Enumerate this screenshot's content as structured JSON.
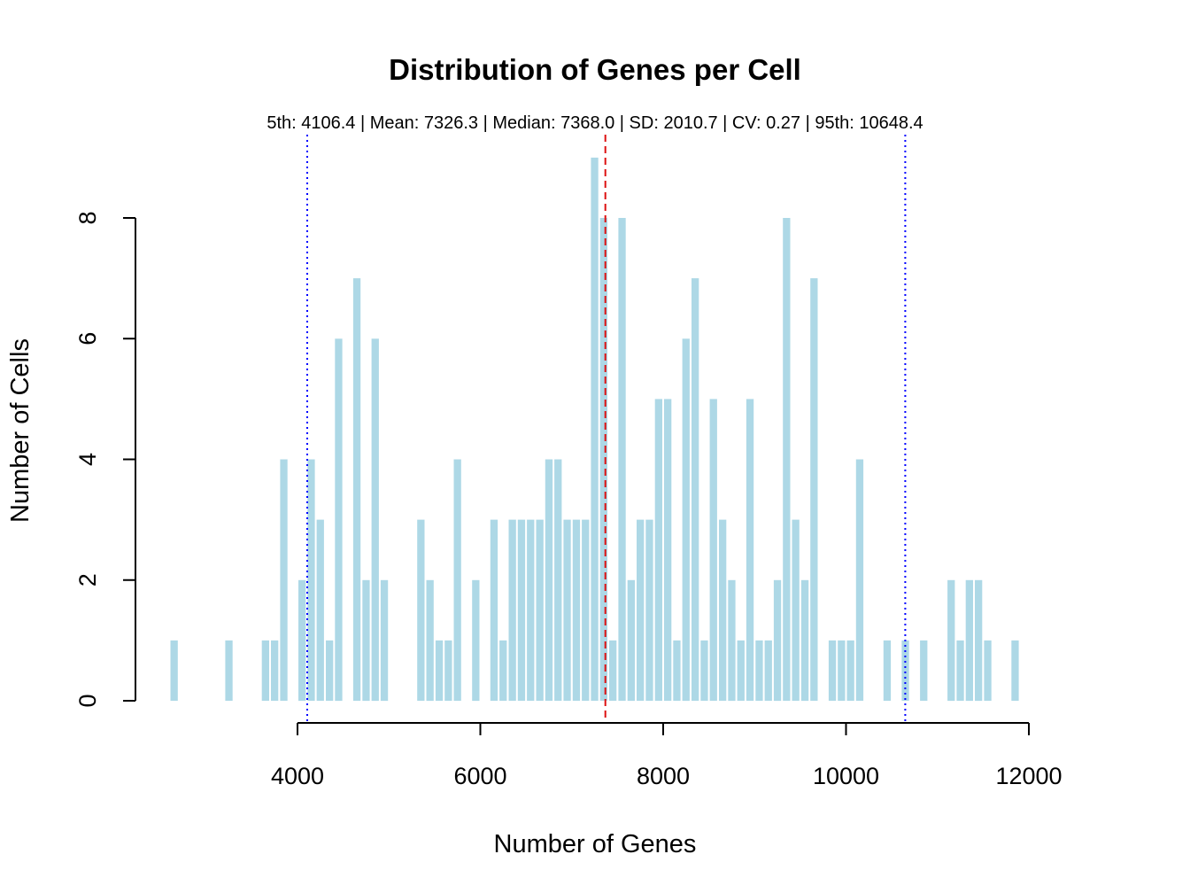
{
  "chart_data": {
    "type": "bar",
    "title": "Distribution of Genes per Cell",
    "subtitle": "5th: 4106.4 | Mean: 7326.3 | Median: 7368.0 | SD: 2010.7 | CV: 0.27 | 95th: 10648.4",
    "xlabel": "Number of Genes",
    "ylabel": "Number of Cells",
    "xlim": [
      3100,
      12100
    ],
    "ylim": [
      0,
      9
    ],
    "x_ticks": [
      "4000",
      "6000",
      "8000",
      "10000",
      "12000"
    ],
    "y_ticks": [
      "0",
      "2",
      "4",
      "6",
      "8"
    ],
    "bin_width": 100,
    "bar_color": "#add8e6",
    "bins": [
      {
        "x": 2600,
        "count": 1
      },
      {
        "x": 3200,
        "count": 1
      },
      {
        "x": 3600,
        "count": 1
      },
      {
        "x": 3700,
        "count": 1
      },
      {
        "x": 3800,
        "count": 4
      },
      {
        "x": 4000,
        "count": 2
      },
      {
        "x": 4100,
        "count": 4
      },
      {
        "x": 4200,
        "count": 3
      },
      {
        "x": 4300,
        "count": 1
      },
      {
        "x": 4400,
        "count": 6
      },
      {
        "x": 4600,
        "count": 7
      },
      {
        "x": 4700,
        "count": 2
      },
      {
        "x": 4800,
        "count": 6
      },
      {
        "x": 4900,
        "count": 2
      },
      {
        "x": 5300,
        "count": 3
      },
      {
        "x": 5400,
        "count": 2
      },
      {
        "x": 5500,
        "count": 1
      },
      {
        "x": 5600,
        "count": 1
      },
      {
        "x": 5700,
        "count": 4
      },
      {
        "x": 5900,
        "count": 2
      },
      {
        "x": 6100,
        "count": 3
      },
      {
        "x": 6200,
        "count": 1
      },
      {
        "x": 6300,
        "count": 3
      },
      {
        "x": 6400,
        "count": 3
      },
      {
        "x": 6500,
        "count": 3
      },
      {
        "x": 6600,
        "count": 3
      },
      {
        "x": 6700,
        "count": 4
      },
      {
        "x": 6800,
        "count": 4
      },
      {
        "x": 6900,
        "count": 3
      },
      {
        "x": 7000,
        "count": 3
      },
      {
        "x": 7100,
        "count": 3
      },
      {
        "x": 7200,
        "count": 9
      },
      {
        "x": 7300,
        "count": 8
      },
      {
        "x": 7400,
        "count": 1
      },
      {
        "x": 7500,
        "count": 8
      },
      {
        "x": 7600,
        "count": 2
      },
      {
        "x": 7700,
        "count": 3
      },
      {
        "x": 7800,
        "count": 3
      },
      {
        "x": 7900,
        "count": 5
      },
      {
        "x": 8000,
        "count": 5
      },
      {
        "x": 8100,
        "count": 1
      },
      {
        "x": 8200,
        "count": 6
      },
      {
        "x": 8300,
        "count": 7
      },
      {
        "x": 8400,
        "count": 1
      },
      {
        "x": 8500,
        "count": 5
      },
      {
        "x": 8600,
        "count": 3
      },
      {
        "x": 8700,
        "count": 2
      },
      {
        "x": 8800,
        "count": 1
      },
      {
        "x": 8900,
        "count": 5
      },
      {
        "x": 9000,
        "count": 1
      },
      {
        "x": 9100,
        "count": 1
      },
      {
        "x": 9200,
        "count": 2
      },
      {
        "x": 9300,
        "count": 8
      },
      {
        "x": 9400,
        "count": 3
      },
      {
        "x": 9500,
        "count": 2
      },
      {
        "x": 9600,
        "count": 7
      },
      {
        "x": 9800,
        "count": 1
      },
      {
        "x": 9900,
        "count": 1
      },
      {
        "x": 10000,
        "count": 1
      },
      {
        "x": 10100,
        "count": 4
      },
      {
        "x": 10400,
        "count": 1
      },
      {
        "x": 10600,
        "count": 1
      },
      {
        "x": 10800,
        "count": 1
      },
      {
        "x": 11100,
        "count": 2
      },
      {
        "x": 11200,
        "count": 1
      },
      {
        "x": 11300,
        "count": 2
      },
      {
        "x": 11400,
        "count": 2
      },
      {
        "x": 11500,
        "count": 1
      },
      {
        "x": 11800,
        "count": 1
      }
    ],
    "reference_lines": [
      {
        "value": 4106.4,
        "color": "#0000ff",
        "style": "dotted"
      },
      {
        "value": 7368.0,
        "color": "#dd1111",
        "style": "dashed"
      },
      {
        "value": 10648.4,
        "color": "#0000ff",
        "style": "dotted"
      }
    ]
  }
}
